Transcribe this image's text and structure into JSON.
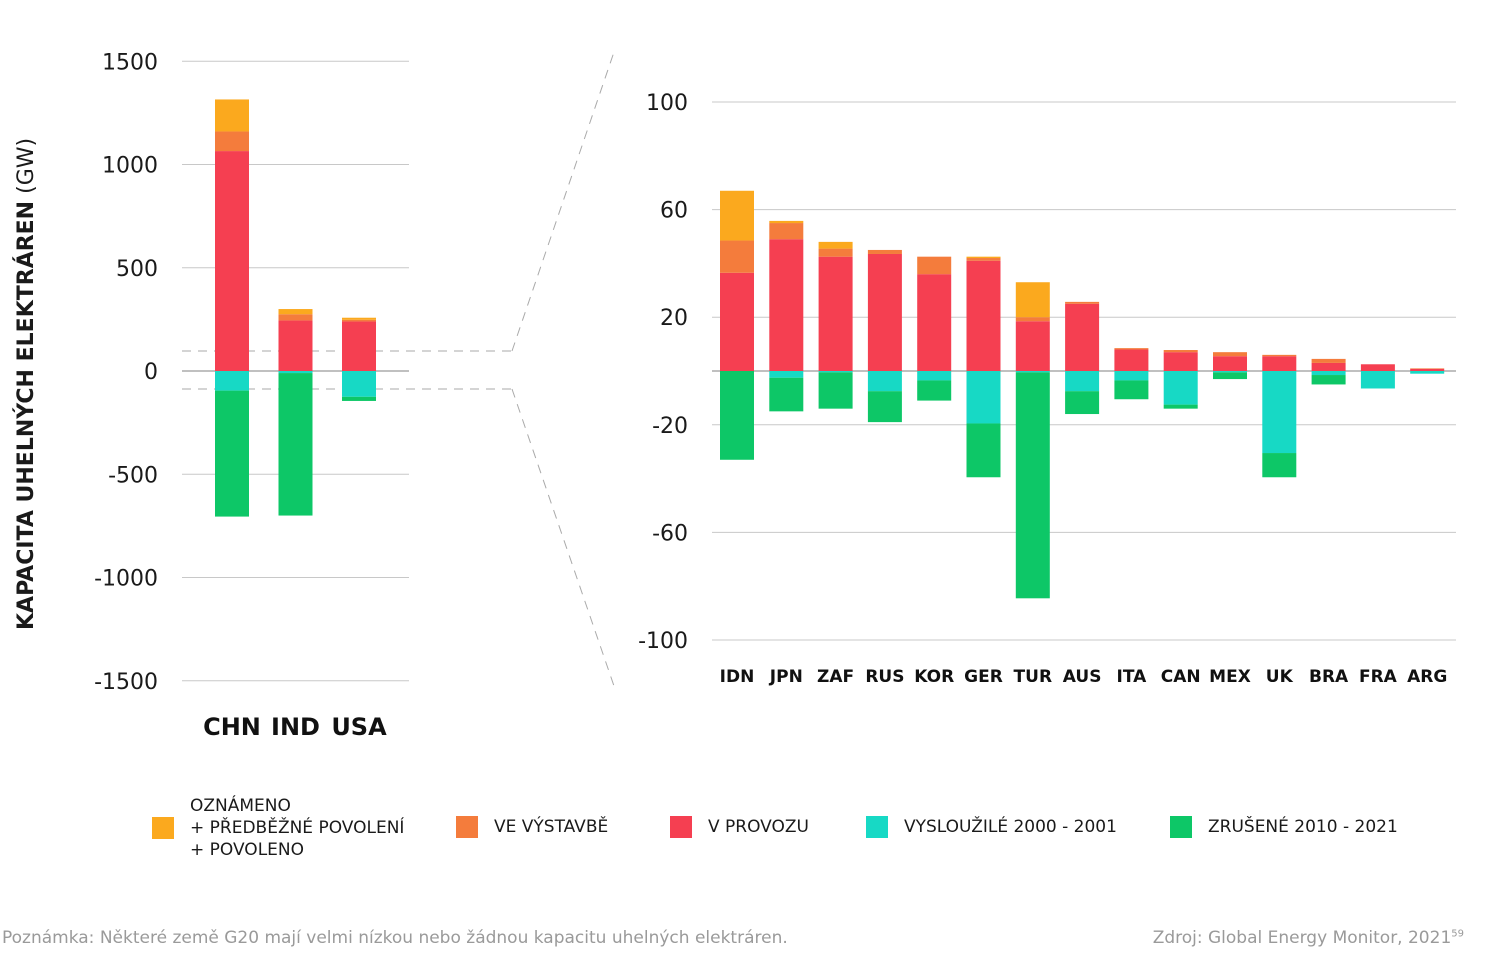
{
  "y_axis_label": {
    "bold": "KAPACITA UHELNÝCH ELEKTRÁREN",
    "unit": "(GW)"
  },
  "colors": {
    "announced": "#FBA91E",
    "construction": "#F47C3C",
    "operating": "#F53F51",
    "retired": "#17D9C5",
    "cancelled": "#0DC767",
    "grid": "#c8c8c8",
    "zero": "#9a9a9a",
    "dash": "#aaaaaa"
  },
  "legend": {
    "announced": [
      "OZNÁMENO",
      "+ PŘEDBĚŽNÉ POVOLENÍ",
      "+ POVOLENO"
    ],
    "construction": "VE VÝSTAVBĚ",
    "operating": "V PROVOZU",
    "retired": "VYSLOUŽILÉ 2000 - 2001",
    "cancelled": "ZRUŠENÉ 2010 - 2021"
  },
  "note": "Poznámka: Některé země G20 mají velmi nízkou nebo žádnou kapacitu uhelných elektráren.",
  "source": "Zdroj: Global Energy Monitor, 2021",
  "source_ref": "59",
  "chart_data": [
    {
      "type": "bar",
      "stacked": true,
      "title": "",
      "ylabel": "KAPACITA UHELNÝCH ELEKTRÁREN (GW)",
      "ylim": [
        -1500,
        1500
      ],
      "yticks": [
        1500,
        1000,
        500,
        0,
        -500,
        -1000,
        -1500
      ],
      "ytick_labels": [
        "1500",
        "1000",
        "500",
        "0",
        "-500",
        "-1000",
        "-1500"
      ],
      "categories": [
        "CHN",
        "IND",
        "USA"
      ],
      "series": [
        {
          "key": "operating",
          "name": "V PROVOZU",
          "values": [
            1065,
            245,
            240
          ]
        },
        {
          "key": "construction",
          "name": "VE VÝSTAVBĚ",
          "values": [
            95,
            30,
            8
          ]
        },
        {
          "key": "announced",
          "name": "OZNÁMENO + PŘEDBĚŽNÉ POVOLENÍ + POVOLENO",
          "values": [
            155,
            25,
            10
          ]
        },
        {
          "key": "retired",
          "name": "VYSLOUŽILÉ 2000 - 2001",
          "values": [
            -95,
            -10,
            -125
          ]
        },
        {
          "key": "cancelled",
          "name": "ZRUŠENÉ 2010 - 2021",
          "values": [
            -610,
            -690,
            -20
          ]
        }
      ]
    },
    {
      "type": "bar",
      "stacked": true,
      "title": "",
      "ylim": [
        -115,
        115
      ],
      "yticks": [
        100,
        60,
        20,
        -20,
        -60,
        -100
      ],
      "ytick_labels": [
        "100",
        "60",
        "20",
        "-20",
        "-60",
        "-100"
      ],
      "categories": [
        "IDN",
        "JPN",
        "ZAF",
        "RUS",
        "KOR",
        "GER",
        "TUR",
        "AUS",
        "ITA",
        "CAN",
        "MEX",
        "UK",
        "BRA",
        "FRA",
        "ARG"
      ],
      "series": [
        {
          "key": "operating",
          "name": "V PROVOZU",
          "values": [
            36.5,
            49,
            42.5,
            43.5,
            36,
            41,
            18.5,
            25,
            8,
            7,
            5.5,
            5.5,
            3,
            2.5,
            0.8
          ]
        },
        {
          "key": "construction",
          "name": "VE VÝSTAVBĚ",
          "values": [
            12,
            6,
            3,
            1.5,
            6.5,
            1,
            1.5,
            0.7,
            0.5,
            0.8,
            1.5,
            0.5,
            1.5,
            0,
            0.2
          ]
        },
        {
          "key": "announced",
          "name": "OZNÁMENO + PŘEDBĚŽNÉ POVOLENÍ + POVOLENO",
          "values": [
            18.5,
            0.8,
            2.5,
            0,
            0,
            0.5,
            13,
            0,
            0,
            0,
            0,
            0,
            0,
            0,
            0
          ]
        },
        {
          "key": "retired",
          "name": "VYSLOUŽILÉ 2000 - 2001",
          "values": [
            0,
            -2.5,
            -0.5,
            -7.5,
            -3.5,
            -19.5,
            -0.5,
            -7.5,
            -3.5,
            -12.5,
            -0.5,
            -30.5,
            -1.5,
            -6.5,
            -1
          ]
        },
        {
          "key": "cancelled",
          "name": "ZRUŠENÉ 2010 - 2021",
          "values": [
            -33,
            -12.5,
            -13.5,
            -11.5,
            -7.5,
            -20,
            -84,
            -8.5,
            -7,
            -1.5,
            -2.5,
            -9,
            -3.5,
            0,
            0
          ]
        }
      ]
    }
  ]
}
